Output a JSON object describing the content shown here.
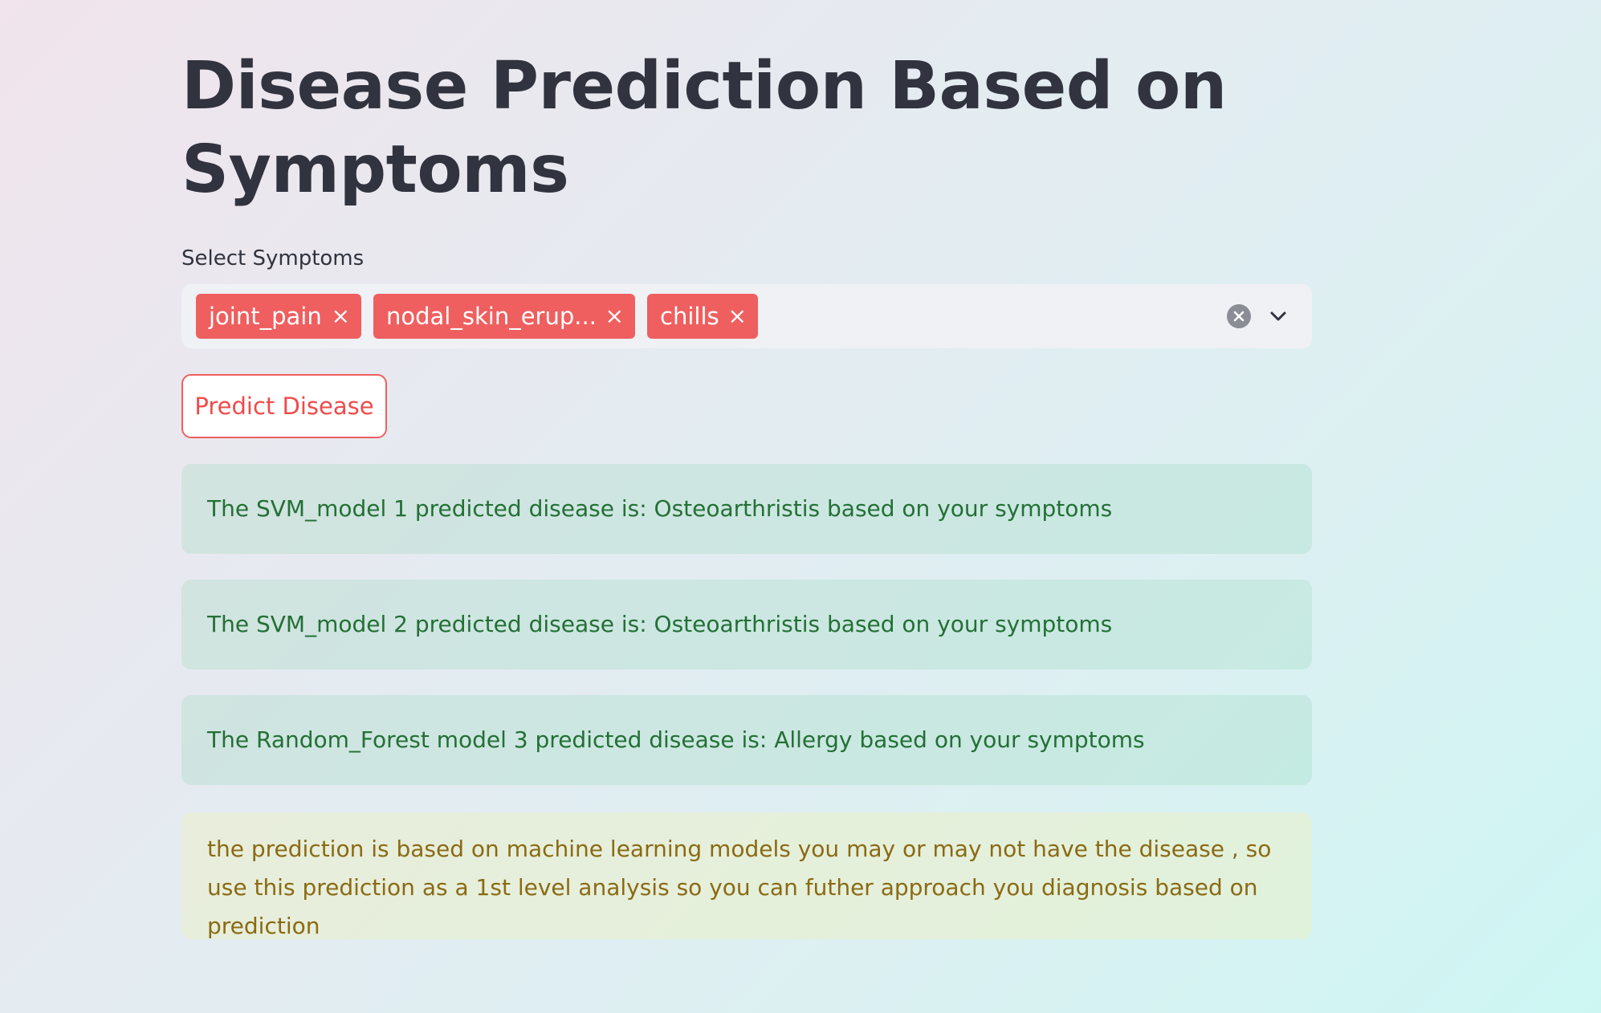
{
  "page": {
    "title": "Disease Prediction Based on Symptoms"
  },
  "symptoms": {
    "label": "Select Symptoms",
    "selected": [
      {
        "label": "joint_pain"
      },
      {
        "label": "nodal_skin_erup..."
      },
      {
        "label": "chills"
      }
    ],
    "chip_close_glyph": "×"
  },
  "predict_button": {
    "label": "Predict Disease"
  },
  "results": [
    {
      "text": "The SVM_model 1 predicted disease is: Osteoarthristis based on your symptoms",
      "status": "success"
    },
    {
      "text": "The SVM_model 2 predicted disease is: Osteoarthristis based on your symptoms",
      "status": "success"
    },
    {
      "text": "The Random_Forest model 3 predicted disease is: Allergy based on your symptoms",
      "status": "success"
    }
  ],
  "disclaimer": {
    "text": "the prediction is based on machine learning models you may or may not have the disease , so use this prediction as a 1st level analysis so you can futher approach you diagnosis based on prediction",
    "status": "warning"
  },
  "colors": {
    "accent": "#ef5f5f",
    "success_text": "#237035",
    "warning_text": "#8a6a14"
  }
}
